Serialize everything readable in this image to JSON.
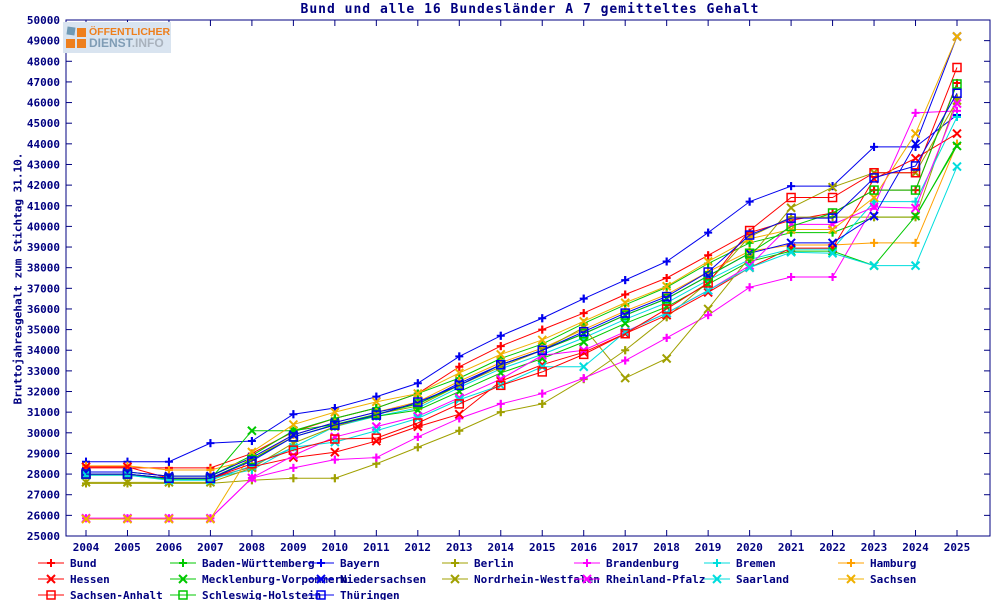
{
  "title": "Bund und alle 16 Bundesländer A 7 gemitteltes Gehalt",
  "logo": {
    "line1": "ÖFFENTLICHER",
    "line2a": "DIENST",
    "line2b": ".INFO"
  },
  "axes": {
    "ylabel": "Bruttojahresgehalt zum Stichtag 31.10.",
    "y_min": 25000,
    "y_max": 50000,
    "y_step": 1000,
    "x_ticks": [
      2004,
      2005,
      2006,
      2007,
      2008,
      2009,
      2010,
      2011,
      2012,
      2013,
      2014,
      2015,
      2016,
      2017,
      2018,
      2019,
      2020,
      2021,
      2022,
      2023,
      2024,
      2025
    ],
    "axis_color": "#000080"
  },
  "chart_data": {
    "type": "line",
    "title": "Bund und alle 16 Bundesländer A 7 gemitteltes Gehalt",
    "xlabel": "",
    "ylabel": "Bruttojahresgehalt zum Stichtag 31.10.",
    "ylim": [
      25000,
      50000
    ],
    "grid": false,
    "legend_position": "bottom",
    "x": [
      2004,
      2005,
      2006,
      2007,
      2008,
      2009,
      2010,
      2011,
      2012,
      2013,
      2014,
      2015,
      2016,
      2017,
      2018,
      2019,
      2020,
      2021,
      2022,
      2023,
      2024,
      2025
    ],
    "series": [
      {
        "name": "Bund",
        "color": "#ff0000",
        "marker": "plus",
        "values": [
          28300,
          28300,
          28300,
          28300,
          29000,
          30050,
          30700,
          31200,
          31900,
          33200,
          34200,
          35000,
          35800,
          36700,
          37500,
          38600,
          39700,
          40300,
          40650,
          41760,
          41760,
          46950
        ]
      },
      {
        "name": "Baden-Württemberg",
        "color": "#00c800",
        "marker": "plus",
        "values": [
          28100,
          28100,
          27900,
          27900,
          28900,
          30100,
          30700,
          31200,
          31900,
          32650,
          33600,
          34300,
          35300,
          36200,
          37050,
          38200,
          39200,
          39700,
          39700,
          40450,
          40450,
          44000
        ]
      },
      {
        "name": "Bayern",
        "color": "#0000ee",
        "marker": "plus",
        "values": [
          28600,
          28600,
          28600,
          29500,
          29600,
          30900,
          31200,
          31750,
          32400,
          33700,
          34700,
          35550,
          36500,
          37400,
          38300,
          39700,
          41200,
          41950,
          41950,
          43850,
          43850,
          45400
        ]
      },
      {
        "name": "Berlin",
        "color": "#a0a000",
        "marker": "plus",
        "values": [
          27550,
          27550,
          27550,
          27550,
          27700,
          27800,
          27800,
          28500,
          29300,
          30100,
          31000,
          31400,
          32600,
          34000,
          35600,
          37300,
          39500,
          40450,
          40450,
          40450,
          40450,
          46200
        ]
      },
      {
        "name": "Brandenburg",
        "color": "#ff00ff",
        "marker": "plus",
        "values": [
          25860,
          25860,
          25860,
          25860,
          27810,
          28300,
          28700,
          28800,
          29800,
          30700,
          31400,
          31900,
          32650,
          33500,
          34600,
          35700,
          37050,
          37550,
          37550,
          41000,
          45500,
          45600
        ]
      },
      {
        "name": "Bremen",
        "color": "#00dddd",
        "marker": "plus",
        "values": [
          28000,
          28000,
          27800,
          27800,
          28200,
          29300,
          30300,
          30800,
          31200,
          32200,
          33100,
          33800,
          34600,
          35500,
          36300,
          37400,
          38400,
          38900,
          38900,
          41200,
          41200,
          45300
        ]
      },
      {
        "name": "Hamburg",
        "color": "#ffa000",
        "marker": "plus",
        "values": [
          28400,
          28400,
          28200,
          28200,
          28700,
          29900,
          30500,
          31000,
          31500,
          32500,
          33400,
          34100,
          35000,
          35900,
          36700,
          37800,
          38800,
          39100,
          39100,
          39200,
          39200,
          44000
        ]
      },
      {
        "name": "Hessen",
        "color": "#ff0000",
        "marker": "cross",
        "values": [
          28350,
          28350,
          27800,
          27800,
          28350,
          28800,
          29060,
          29600,
          30300,
          30900,
          32500,
          33300,
          33900,
          34800,
          35700,
          36800,
          38000,
          38950,
          38950,
          42300,
          43300,
          44500
        ]
      },
      {
        "name": "Mecklenburg-Vorpommern",
        "color": "#00c800",
        "marker": "cross",
        "values": [
          27950,
          27950,
          27750,
          27750,
          30100,
          30100,
          30400,
          30800,
          31100,
          32000,
          32900,
          33600,
          34400,
          35300,
          36100,
          37200,
          38300,
          38800,
          38800,
          38100,
          40500,
          43900
        ]
      },
      {
        "name": "Niedersachsen",
        "color": "#0000ee",
        "marker": "cross",
        "values": [
          28100,
          28100,
          27900,
          27900,
          28800,
          29900,
          30500,
          31000,
          31400,
          32400,
          33300,
          34000,
          34800,
          35700,
          36500,
          37600,
          38700,
          39200,
          39200,
          40500,
          44000,
          49200
        ]
      },
      {
        "name": "Nordrhein-Westfalen",
        "color": "#a0a000",
        "marker": "cross",
        "values": [
          27600,
          27600,
          27600,
          27600,
          28300,
          29500,
          30300,
          30900,
          31300,
          32300,
          33200,
          34000,
          35100,
          32650,
          33600,
          36000,
          38500,
          40900,
          41900,
          42600,
          42600,
          46100
        ]
      },
      {
        "name": "Rheinland-Pfalz",
        "color": "#ff00ff",
        "marker": "cross",
        "values": [
          25860,
          25860,
          25860,
          25860,
          27810,
          28900,
          29800,
          30300,
          30800,
          31700,
          32600,
          33750,
          34000,
          34900,
          35800,
          36900,
          38100,
          40100,
          40100,
          40940,
          40890,
          45950
        ]
      },
      {
        "name": "Saarland",
        "color": "#00dddd",
        "marker": "cross",
        "values": [
          27950,
          27950,
          27700,
          27700,
          28400,
          29300,
          29550,
          30100,
          30700,
          31600,
          32300,
          33200,
          33200,
          34880,
          35800,
          36900,
          38000,
          38750,
          38700,
          38100,
          38100,
          42900
        ]
      },
      {
        "name": "Sachsen",
        "color": "#f0b000",
        "marker": "cross",
        "values": [
          25820,
          25820,
          25820,
          25820,
          29070,
          30400,
          31000,
          31500,
          31900,
          32900,
          33800,
          34500,
          35400,
          36300,
          37100,
          38300,
          39400,
          39850,
          39850,
          41400,
          44500,
          49200
        ]
      },
      {
        "name": "Sachsen-Anhalt",
        "color": "#ff0000",
        "marker": "square",
        "values": [
          28000,
          28000,
          27800,
          27800,
          28500,
          29160,
          29700,
          29740,
          30475,
          31400,
          32300,
          32950,
          33800,
          34800,
          36000,
          37260,
          39800,
          41400,
          41400,
          42600,
          42600,
          47700
        ]
      },
      {
        "name": "Schleswig-Holstein",
        "color": "#00c800",
        "marker": "square",
        "values": [
          28000,
          28000,
          27800,
          27800,
          28700,
          29800,
          30400,
          30900,
          31400,
          32300,
          33300,
          34000,
          34800,
          35700,
          36500,
          37600,
          38700,
          40000,
          40650,
          41760,
          41760,
          46900
        ]
      },
      {
        "name": "Thüringen",
        "color": "#0000ee",
        "marker": "square",
        "values": [
          28000,
          28000,
          27800,
          27800,
          28630,
          29800,
          30370,
          30860,
          31490,
          32300,
          33300,
          34000,
          34900,
          35800,
          36600,
          37790,
          39580,
          40400,
          40400,
          42350,
          42930,
          46450
        ]
      }
    ]
  }
}
